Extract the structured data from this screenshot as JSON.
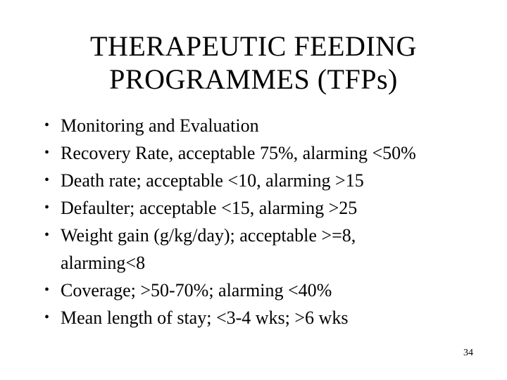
{
  "slide": {
    "title": "THERAPEUTIC FEEDING\nPROGRAMMES (TFPs)",
    "bullet_glyph": "•",
    "bullets": [
      "Monitoring and Evaluation",
      "Recovery Rate, acceptable 75%, alarming <50%",
      "Death rate; acceptable <10, alarming >15",
      "Defaulter; acceptable <15, alarming >25",
      "Weight gain (g/kg/day); acceptable >=8,\nalarming<8",
      "Coverage; >50-70%; alarming <40%",
      "Mean length of stay; <3-4 wks; >6 wks"
    ],
    "page_number": "34",
    "colors": {
      "background": "#ffffff",
      "text": "#000000"
    }
  }
}
